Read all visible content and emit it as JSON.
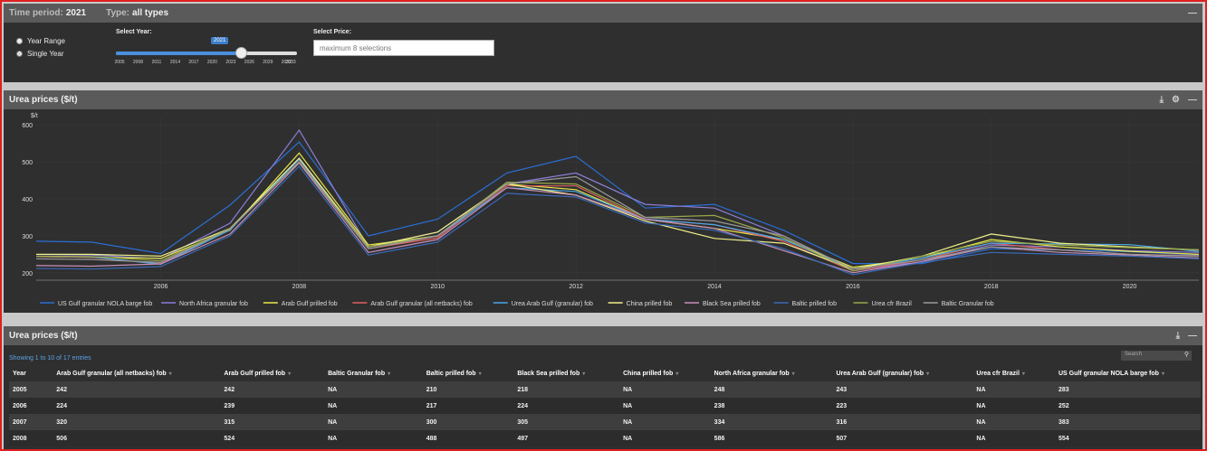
{
  "filter_panel": {
    "time_period_label": "Time period:",
    "time_period_value": "2021",
    "type_label": "Type:",
    "type_value": "all types",
    "radio_year_range": "Year Range",
    "radio_single_year": "Single Year",
    "selected_mode": "single",
    "select_year_label": "Select Year:",
    "selected_year": "2021",
    "slider_position": 0.69,
    "slider_ticks": [
      "2005",
      "2008",
      "2011",
      "2014",
      "2017",
      "2020",
      "2023",
      "2026",
      "2029",
      "2032",
      "2033"
    ],
    "select_price_label": "Select Price:",
    "select_price_placeholder": "maximum 8 selections"
  },
  "chart_panel": {
    "title": "Urea prices ($/t)"
  },
  "chart_data": {
    "type": "line",
    "title": "",
    "ylabel": "$/t",
    "xlabel": "",
    "ylim": [
      180,
      620
    ],
    "xlim": [
      2004.2,
      2021
    ],
    "yticks": [
      200,
      300,
      400,
      500,
      600
    ],
    "xticks": [
      2006,
      2008,
      2010,
      2012,
      2014,
      2016,
      2018,
      2020
    ],
    "x": [
      2004,
      2005,
      2006,
      2007,
      2008,
      2009,
      2010,
      2011,
      2012,
      2013,
      2014,
      2015,
      2016,
      2017,
      2018,
      2019,
      2020,
      2021
    ],
    "legend_position": "bottom",
    "series": [
      {
        "name": "US Gulf granular NOLA barge fob",
        "color": "#2a6fd6",
        "values": [
          286,
          283,
          252,
          383,
          554,
          300,
          345,
          470,
          515,
          375,
          385,
          315,
          225,
          225,
          265,
          262,
          257,
          248
        ]
      },
      {
        "name": "North Africa granular fob",
        "color": "#8a7fd8",
        "values": [
          250,
          248,
          238,
          334,
          586,
          270,
          310,
          440,
          470,
          385,
          375,
          300,
          205,
          230,
          275,
          270,
          260,
          255
        ]
      },
      {
        "name": "Arab Gulf prilled fob",
        "color": "#e8e84a",
        "values": [
          244,
          242,
          239,
          315,
          524,
          275,
          300,
          440,
          425,
          345,
          320,
          290,
          215,
          240,
          290,
          270,
          258,
          250
        ]
      },
      {
        "name": "Arab Gulf granular (all netbacks) fob",
        "color": "#e06060",
        "values": [
          244,
          242,
          224,
          320,
          506,
          265,
          295,
          435,
          435,
          345,
          330,
          285,
          205,
          235,
          280,
          262,
          250,
          246
        ]
      },
      {
        "name": "Urea Arab Gulf (granular) fob",
        "color": "#4aa8e8",
        "values": [
          245,
          243,
          223,
          316,
          507,
          270,
          300,
          430,
          420,
          345,
          330,
          290,
          210,
          240,
          280,
          278,
          276,
          258
        ]
      },
      {
        "name": "China prilled fob",
        "color": "#f0f08a",
        "values": [
          250,
          250,
          245,
          320,
          510,
          270,
          310,
          440,
          410,
          340,
          293,
          280,
          210,
          245,
          305,
          280,
          270,
          262
        ]
      },
      {
        "name": "Black Sea prilled fob",
        "color": "#c890b8",
        "values": [
          220,
          218,
          224,
          305,
          497,
          255,
          290,
          430,
          410,
          345,
          320,
          260,
          200,
          230,
          270,
          255,
          248,
          240
        ]
      },
      {
        "name": "Baltic prilled fob",
        "color": "#3a6ab8",
        "values": [
          212,
          210,
          217,
          300,
          488,
          248,
          283,
          415,
          405,
          335,
          315,
          265,
          195,
          228,
          255,
          250,
          245,
          238
        ]
      },
      {
        "name": "Urea cfr Brazil",
        "color": "#9aa84a",
        "values": [
          245,
          244,
          232,
          320,
          500,
          270,
          300,
          445,
          440,
          350,
          355,
          295,
          205,
          245,
          285,
          275,
          268,
          262
        ]
      },
      {
        "name": "Baltic Granular fob",
        "color": "#9a9a9a",
        "values": [
          238,
          236,
          228,
          318,
          500,
          265,
          300,
          440,
          460,
          350,
          340,
          300,
          210,
          235,
          270,
          262,
          250,
          245
        ]
      }
    ]
  },
  "table_panel": {
    "title": "Urea prices ($/t)",
    "entries_info": "Showing 1 to 10 of 17 entries",
    "search_placeholder": "Search",
    "columns": [
      "Year",
      "Arab Gulf granular (all netbacks) fob",
      "Arab Gulf prilled fob",
      "Baltic Granular fob",
      "Baltic prilled fob",
      "Black Sea prilled fob",
      "China prilled fob",
      "North Africa granular fob",
      "Urea Arab Gulf (granular) fob",
      "Urea cfr Brazil",
      "US Gulf granular NOLA barge fob"
    ],
    "rows": [
      [
        "2005",
        "242",
        "242",
        "NA",
        "210",
        "218",
        "NA",
        "248",
        "243",
        "NA",
        "283"
      ],
      [
        "2006",
        "224",
        "239",
        "NA",
        "217",
        "224",
        "NA",
        "238",
        "223",
        "NA",
        "252"
      ],
      [
        "2007",
        "320",
        "315",
        "NA",
        "300",
        "305",
        "NA",
        "334",
        "316",
        "NA",
        "383"
      ],
      [
        "2008",
        "506",
        "524",
        "NA",
        "488",
        "497",
        "NA",
        "586",
        "507",
        "NA",
        "554"
      ]
    ]
  }
}
